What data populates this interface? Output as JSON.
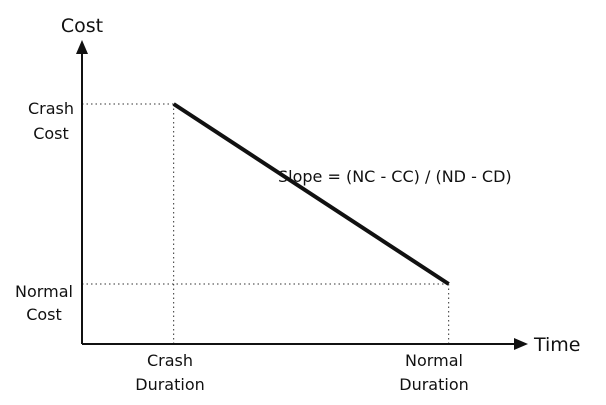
{
  "chart_data": {
    "type": "line",
    "title": "",
    "xlabel": "Time",
    "ylabel": "Cost",
    "x_ticks": [
      {
        "lines": [
          "Crash",
          "Duration"
        ],
        "value": 1
      },
      {
        "lines": [
          "Normal",
          "Duration"
        ],
        "value": 4
      }
    ],
    "y_ticks": [
      {
        "lines": [
          "Crash",
          "Cost"
        ],
        "value": 4
      },
      {
        "lines": [
          "Normal",
          "Cost"
        ],
        "value": 1
      }
    ],
    "xlim": [
      0,
      4.8
    ],
    "ylim": [
      0,
      5
    ],
    "series": [
      {
        "x": [
          1,
          4
        ],
        "y": [
          4,
          1
        ]
      }
    ],
    "reference_lines": "dotted",
    "annotation": "Slope = (NC - CC) / (ND - CD)",
    "grid": false,
    "colors": {
      "line": "#111111",
      "axis": "#111111",
      "guide": "#333333"
    }
  }
}
